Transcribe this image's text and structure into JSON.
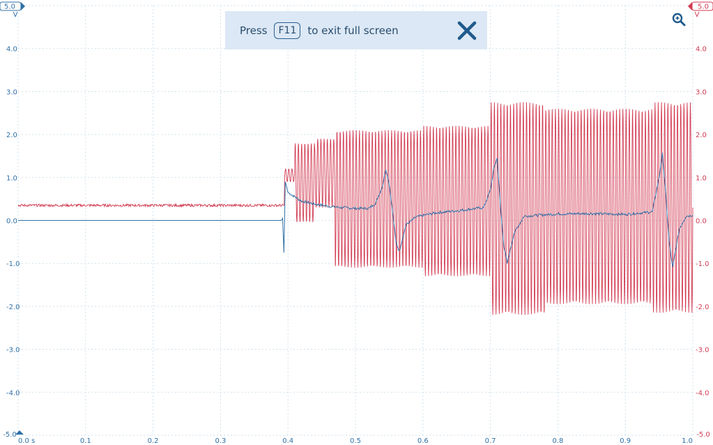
{
  "banner": {
    "press_label": "Press",
    "key_label": "F11",
    "suffix_label": "to exit full screen"
  },
  "colors": {
    "channel_a": "#2f6fa6",
    "channel_b": "#d23a52",
    "grid": "#cfe0ec",
    "banner_bg": "#dce8f5"
  },
  "icons": {
    "close": "close-icon",
    "zoom": "zoom-magnifier-icon"
  },
  "chart_data": {
    "type": "line",
    "title": "",
    "x": {
      "unit": "s",
      "range": [
        0.0,
        1.0
      ],
      "ticks": [
        "0.0 s",
        "0.1",
        "0.2",
        "0.3",
        "0.4",
        "0.5",
        "0.6",
        "0.7",
        "0.8",
        "0.9",
        "1.0"
      ]
    },
    "y_left": {
      "range": [
        -5.0,
        5.0
      ],
      "unit": "V",
      "top_label": "5.0",
      "bottom_label": "-5.0",
      "ticks": [
        "4.0",
        "3.0",
        "2.0",
        "1.0",
        "0.0",
        "-1.0",
        "-2.0",
        "-3.0",
        "-4.0"
      ]
    },
    "y_right": {
      "range": [
        -5.0,
        5.0
      ],
      "unit": "V",
      "top_label": "5.0",
      "bottom_label": "-5.0",
      "ticks": [
        "4.0",
        "3.0",
        "2.0",
        "1.0",
        "0.0",
        "-1.0",
        "-2.0",
        "-3.0",
        "-4.0"
      ]
    },
    "grid": true,
    "series": [
      {
        "channel": "A",
        "color": "#2f6fa6",
        "axis": "left",
        "points": [
          [
            0.0,
            0.0
          ],
          [
            0.39,
            0.0
          ],
          [
            0.392,
            0.05
          ],
          [
            0.394,
            -0.75
          ],
          [
            0.396,
            0.9
          ],
          [
            0.4,
            0.65
          ],
          [
            0.41,
            0.55
          ],
          [
            0.42,
            0.45
          ],
          [
            0.44,
            0.38
          ],
          [
            0.46,
            0.33
          ],
          [
            0.48,
            0.3
          ],
          [
            0.5,
            0.28
          ],
          [
            0.52,
            0.28
          ],
          [
            0.53,
            0.4
          ],
          [
            0.54,
            0.8
          ],
          [
            0.545,
            1.2
          ],
          [
            0.55,
            0.85
          ],
          [
            0.555,
            0.2
          ],
          [
            0.56,
            -0.5
          ],
          [
            0.565,
            -0.72
          ],
          [
            0.575,
            -0.1
          ],
          [
            0.59,
            0.08
          ],
          [
            0.62,
            0.18
          ],
          [
            0.66,
            0.24
          ],
          [
            0.69,
            0.3
          ],
          [
            0.7,
            0.7
          ],
          [
            0.705,
            1.2
          ],
          [
            0.71,
            1.45
          ],
          [
            0.715,
            0.3
          ],
          [
            0.72,
            -0.6
          ],
          [
            0.725,
            -1.0
          ],
          [
            0.735,
            -0.3
          ],
          [
            0.75,
            0.1
          ],
          [
            0.8,
            0.15
          ],
          [
            0.85,
            0.16
          ],
          [
            0.9,
            0.14
          ],
          [
            0.94,
            0.2
          ],
          [
            0.95,
            1.0
          ],
          [
            0.955,
            1.55
          ],
          [
            0.96,
            0.6
          ],
          [
            0.965,
            -0.5
          ],
          [
            0.97,
            -1.1
          ],
          [
            0.98,
            -0.2
          ],
          [
            0.99,
            0.1
          ],
          [
            1.0,
            0.12
          ]
        ]
      },
      {
        "channel": "B",
        "color": "#d23a52",
        "axis": "right",
        "baseline": 0.35,
        "baseline_end": 0.395,
        "segments": [
          {
            "t0": 0.395,
            "t1": 0.41,
            "amplitude_max": 1.2,
            "amplitude_min": 0.9
          },
          {
            "t0": 0.41,
            "t1": 0.44,
            "amplitude_max": 1.8,
            "amplitude_min": -0.05
          },
          {
            "t0": 0.44,
            "t1": 0.47,
            "amplitude_max": 1.9,
            "amplitude_min": 0.3
          },
          {
            "t0": 0.47,
            "t1": 0.6,
            "amplitude_max": 2.1,
            "amplitude_min": -1.1
          },
          {
            "t0": 0.6,
            "t1": 0.7,
            "amplitude_max": 2.2,
            "amplitude_min": -1.3
          },
          {
            "t0": 0.7,
            "t1": 0.78,
            "amplitude_max": 2.75,
            "amplitude_min": -2.2
          },
          {
            "t0": 0.78,
            "t1": 0.94,
            "amplitude_max": 2.6,
            "amplitude_min": -1.95
          },
          {
            "t0": 0.94,
            "t1": 1.0,
            "amplitude_max": 2.75,
            "amplitude_min": -2.15
          }
        ],
        "approx_cycles_per_second": 210
      }
    ]
  }
}
